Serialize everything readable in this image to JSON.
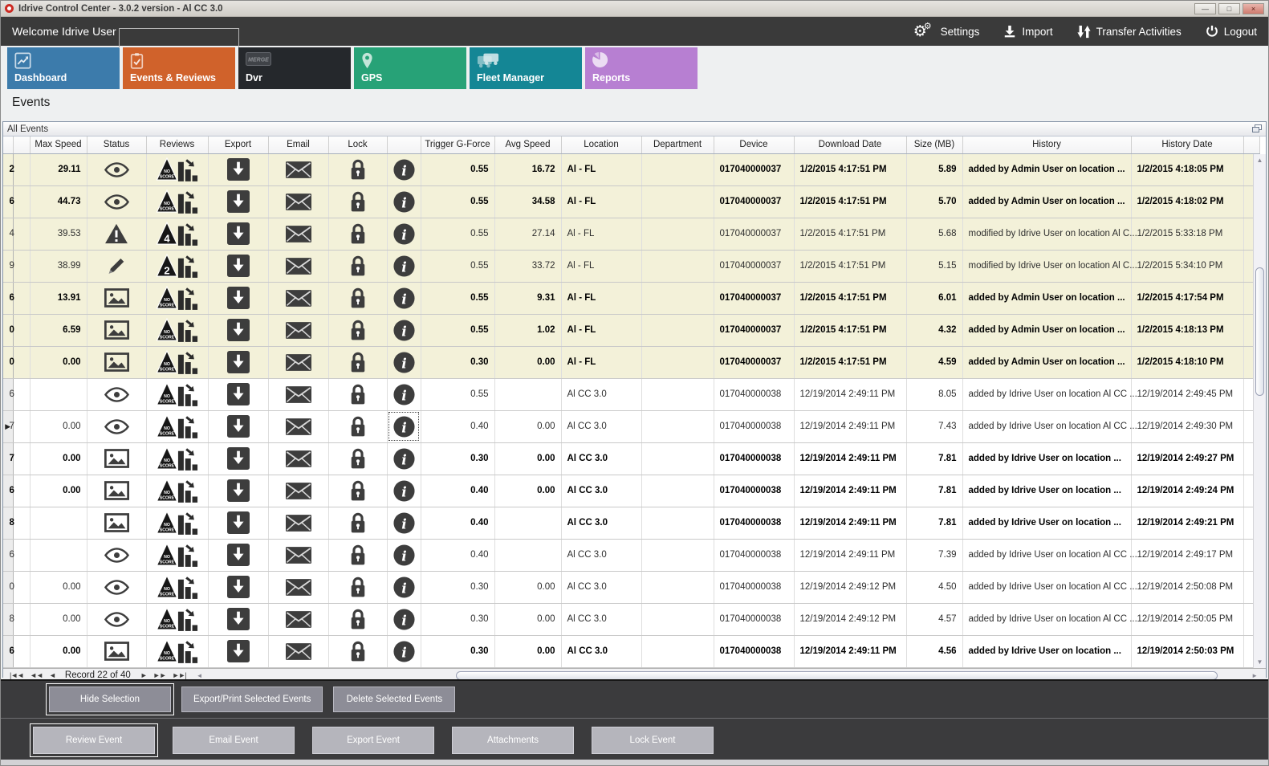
{
  "window": {
    "title": "Idrive Control Center - 3.0.2 version - Al CC 3.0",
    "controls": {
      "minimize": "—",
      "maximize": "□",
      "close": "×"
    }
  },
  "topbar": {
    "welcome": "Welcome Idrive User",
    "actions": [
      {
        "id": "settings",
        "label": "Settings",
        "icon": "gears"
      },
      {
        "id": "import",
        "label": "Import",
        "icon": "import"
      },
      {
        "id": "transfer-activities",
        "label": "Transfer Activities",
        "icon": "transfer"
      },
      {
        "id": "logout",
        "label": "Logout",
        "icon": "power"
      }
    ]
  },
  "tabs": [
    {
      "id": "dashboard",
      "label": "Dashboard",
      "color": "#3c7bab",
      "icon": "dashboard",
      "selected": false
    },
    {
      "id": "events-reviews",
      "label": "Events & Reviews",
      "color": "#d0622b",
      "icon": "events",
      "selected": true
    },
    {
      "id": "dvr",
      "label": "Dvr",
      "color": "#25282c",
      "icon": "dvr",
      "icon_text": "MERGE",
      "selected": false
    },
    {
      "id": "gps",
      "label": "GPS",
      "color": "#27a277",
      "icon": "gps",
      "selected": false
    },
    {
      "id": "fleet-manager",
      "label": "Fleet Manager",
      "color": "#148695",
      "icon": "fleet",
      "selected": false
    },
    {
      "id": "reports",
      "label": "Reports",
      "color": "#b77fd2",
      "icon": "reports",
      "selected": false
    }
  ],
  "page_title": "Events",
  "panel": {
    "title": "All Events"
  },
  "table": {
    "columns": [
      {
        "label": "",
        "key": "indicator"
      },
      {
        "label": "",
        "key": "partial"
      },
      {
        "label": "Max Speed",
        "key": "max_speed",
        "align": "right"
      },
      {
        "label": "Status",
        "key": "status",
        "type": "status"
      },
      {
        "label": "Reviews",
        "key": "review",
        "type": "review"
      },
      {
        "label": "Export",
        "key": "export",
        "type": "action",
        "icon": "export"
      },
      {
        "label": "Email",
        "key": "email",
        "type": "action",
        "icon": "email"
      },
      {
        "label": "Lock",
        "key": "lock",
        "type": "action",
        "icon": "lock"
      },
      {
        "label": "",
        "key": "info",
        "type": "action",
        "icon": "info"
      },
      {
        "label": "Trigger G-Force",
        "key": "trigger",
        "align": "right"
      },
      {
        "label": "Avg Speed",
        "key": "avg_speed",
        "align": "right"
      },
      {
        "label": "Location",
        "key": "location"
      },
      {
        "label": "Department",
        "key": "department"
      },
      {
        "label": "Device",
        "key": "device"
      },
      {
        "label": "Download Date",
        "key": "download_date"
      },
      {
        "label": "Size (MB)",
        "key": "size_mb",
        "align": "right"
      },
      {
        "label": "History",
        "key": "history"
      },
      {
        "label": "History Date",
        "key": "history_date"
      },
      {
        "label": "",
        "key": "filler"
      }
    ],
    "rows": [
      {
        "partial": "2",
        "max_speed": "29.11",
        "status": "eye",
        "score": "NO SCORE",
        "trigger": "0.55",
        "avg_speed": "16.72",
        "location": "Al - FL",
        "department": "",
        "device": "017040000037",
        "download_date": "1/2/2015 4:17:51 PM",
        "size_mb": "5.89",
        "history": "added by Admin User on location ...",
        "history_date": "1/2/2015 4:18:05 PM",
        "highlight": true,
        "bold": true,
        "focused": false
      },
      {
        "partial": "6",
        "max_speed": "44.73",
        "status": "eye",
        "score": "NO SCORE",
        "trigger": "0.55",
        "avg_speed": "34.58",
        "location": "Al - FL",
        "department": "",
        "device": "017040000037",
        "download_date": "1/2/2015 4:17:51 PM",
        "size_mb": "5.70",
        "history": "added by Admin User on location ...",
        "history_date": "1/2/2015 4:18:02 PM",
        "highlight": true,
        "bold": true,
        "focused": false
      },
      {
        "partial": "4",
        "max_speed": "39.53",
        "status": "warning",
        "score": "4",
        "trigger": "0.55",
        "avg_speed": "27.14",
        "location": "Al - FL",
        "department": "",
        "device": "017040000037",
        "download_date": "1/2/2015 4:17:51 PM",
        "size_mb": "5.68",
        "history": "modified by Idrive User on location Al C...",
        "history_date": "1/2/2015 5:33:18 PM",
        "highlight": true,
        "bold": false,
        "focused": false
      },
      {
        "partial": "9",
        "max_speed": "38.99",
        "status": "pencil",
        "score": "2",
        "trigger": "0.55",
        "avg_speed": "33.72",
        "location": "Al - FL",
        "department": "",
        "device": "017040000037",
        "download_date": "1/2/2015 4:17:51 PM",
        "size_mb": "5.15",
        "history": "modified by Idrive User on location Al C...",
        "history_date": "1/2/2015 5:34:10 PM",
        "highlight": true,
        "bold": false,
        "focused": false
      },
      {
        "partial": "6",
        "max_speed": "13.91",
        "status": "image",
        "score": "NO SCORE",
        "trigger": "0.55",
        "avg_speed": "9.31",
        "location": "Al - FL",
        "department": "",
        "device": "017040000037",
        "download_date": "1/2/2015 4:17:51 PM",
        "size_mb": "6.01",
        "history": "added by Admin User on location ...",
        "history_date": "1/2/2015 4:17:54 PM",
        "highlight": true,
        "bold": true,
        "focused": false
      },
      {
        "partial": "0",
        "max_speed": "6.59",
        "status": "image",
        "score": "NO SCORE",
        "trigger": "0.55",
        "avg_speed": "1.02",
        "location": "Al - FL",
        "department": "",
        "device": "017040000037",
        "download_date": "1/2/2015 4:17:51 PM",
        "size_mb": "4.32",
        "history": "added by Admin User on location ...",
        "history_date": "1/2/2015 4:18:13 PM",
        "highlight": true,
        "bold": true,
        "focused": false
      },
      {
        "partial": "0",
        "max_speed": "0.00",
        "status": "image",
        "score": "NO SCORE",
        "trigger": "0.30",
        "avg_speed": "0.00",
        "location": "Al - FL",
        "department": "",
        "device": "017040000037",
        "download_date": "1/2/2015 4:17:51 PM",
        "size_mb": "4.59",
        "history": "added by Admin User on location ...",
        "history_date": "1/2/2015 4:18:10 PM",
        "highlight": true,
        "bold": true,
        "focused": false
      },
      {
        "partial": "6",
        "max_speed": "",
        "status": "eye",
        "score": "NO SCORE",
        "trigger": "0.55",
        "avg_speed": "",
        "location": "Al CC 3.0",
        "department": "",
        "device": "017040000038",
        "download_date": "12/19/2014 2:49:11 PM",
        "size_mb": "8.05",
        "history": "added by Idrive User on location Al CC ...",
        "history_date": "12/19/2014 2:49:45 PM",
        "highlight": false,
        "bold": false,
        "focused": false
      },
      {
        "partial": "7",
        "max_speed": "0.00",
        "status": "eye",
        "score": "NO SCORE",
        "trigger": "0.40",
        "avg_speed": "0.00",
        "location": "Al CC 3.0",
        "department": "",
        "device": "017040000038",
        "download_date": "12/19/2014 2:49:11 PM",
        "size_mb": "7.43",
        "history": "added by Idrive User on location Al CC ...",
        "history_date": "12/19/2014 2:49:30 PM",
        "highlight": false,
        "bold": false,
        "focused": true
      },
      {
        "partial": "7",
        "max_speed": "0.00",
        "status": "image",
        "score": "NO SCORE",
        "trigger": "0.30",
        "avg_speed": "0.00",
        "location": "Al CC 3.0",
        "department": "",
        "device": "017040000038",
        "download_date": "12/19/2014 2:49:11 PM",
        "size_mb": "7.81",
        "history": "added by Idrive User on location ...",
        "history_date": "12/19/2014 2:49:27 PM",
        "highlight": false,
        "bold": true,
        "focused": false
      },
      {
        "partial": "6",
        "max_speed": "0.00",
        "status": "image",
        "score": "NO SCORE",
        "trigger": "0.40",
        "avg_speed": "0.00",
        "location": "Al CC 3.0",
        "department": "",
        "device": "017040000038",
        "download_date": "12/19/2014 2:49:11 PM",
        "size_mb": "7.81",
        "history": "added by Idrive User on location ...",
        "history_date": "12/19/2014 2:49:24 PM",
        "highlight": false,
        "bold": true,
        "focused": false
      },
      {
        "partial": "8",
        "max_speed": "",
        "status": "image",
        "score": "NO SCORE",
        "trigger": "0.40",
        "avg_speed": "",
        "location": "Al CC 3.0",
        "department": "",
        "device": "017040000038",
        "download_date": "12/19/2014 2:49:11 PM",
        "size_mb": "7.81",
        "history": "added by Idrive User on location ...",
        "history_date": "12/19/2014 2:49:21 PM",
        "highlight": false,
        "bold": true,
        "focused": false
      },
      {
        "partial": "6",
        "max_speed": "",
        "status": "eye",
        "score": "NO SCORE",
        "trigger": "0.40",
        "avg_speed": "",
        "location": "Al CC 3.0",
        "department": "",
        "device": "017040000038",
        "download_date": "12/19/2014 2:49:11 PM",
        "size_mb": "7.39",
        "history": "added by Idrive User on location Al CC ...",
        "history_date": "12/19/2014 2:49:17 PM",
        "highlight": false,
        "bold": false,
        "focused": false
      },
      {
        "partial": "0",
        "max_speed": "0.00",
        "status": "eye",
        "score": "NO SCORE",
        "trigger": "0.30",
        "avg_speed": "0.00",
        "location": "Al CC 3.0",
        "department": "",
        "device": "017040000038",
        "download_date": "12/19/2014 2:49:12 PM",
        "size_mb": "4.50",
        "history": "added by Idrive User on location Al CC ...",
        "history_date": "12/19/2014 2:50:08 PM",
        "highlight": false,
        "bold": false,
        "focused": false
      },
      {
        "partial": "8",
        "max_speed": "0.00",
        "status": "eye",
        "score": "NO SCORE",
        "trigger": "0.30",
        "avg_speed": "0.00",
        "location": "Al CC 3.0",
        "department": "",
        "device": "017040000038",
        "download_date": "12/19/2014 2:49:12 PM",
        "size_mb": "4.57",
        "history": "added by Idrive User on location Al CC ...",
        "history_date": "12/19/2014 2:50:05 PM",
        "highlight": false,
        "bold": false,
        "focused": false
      },
      {
        "partial": "6",
        "max_speed": "0.00",
        "status": "image",
        "score": "NO SCORE",
        "trigger": "0.30",
        "avg_speed": "0.00",
        "location": "Al CC 3.0",
        "department": "",
        "device": "017040000038",
        "download_date": "12/19/2014 2:49:11 PM",
        "size_mb": "4.56",
        "history": "added by Idrive User on location ...",
        "history_date": "12/19/2014 2:50:03 PM",
        "highlight": false,
        "bold": true,
        "focused": false
      }
    ]
  },
  "pagination": {
    "record_text": "Record 22 of 40",
    "back_buttons": [
      {
        "id": "first-record",
        "glyph": "|◄◄"
      },
      {
        "id": "prev-page",
        "glyph": "◄◄"
      },
      {
        "id": "prev-record",
        "glyph": "◄"
      }
    ],
    "forward_buttons": [
      {
        "id": "next-record",
        "glyph": "►"
      },
      {
        "id": "next-page",
        "glyph": "►►"
      },
      {
        "id": "last-record",
        "glyph": "►►|"
      }
    ]
  },
  "action_bar_primary": [
    {
      "id": "hide-selection",
      "label": "Hide Selection",
      "focused": true
    },
    {
      "id": "export-print-selected-events",
      "label": "Export/Print Selected Events",
      "focused": false
    },
    {
      "id": "delete-selected-events",
      "label": "Delete Selected  Events",
      "focused": false
    }
  ],
  "action_bar_secondary": [
    {
      "id": "review-event",
      "label": "Review Event",
      "focused": true
    },
    {
      "id": "email-event",
      "label": "Email Event",
      "focused": false
    },
    {
      "id": "export-event",
      "label": "Export Event",
      "focused": false
    },
    {
      "id": "attachments",
      "label": "Attachments",
      "focused": false
    },
    {
      "id": "lock-event",
      "label": "Lock Event",
      "focused": false
    }
  ]
}
